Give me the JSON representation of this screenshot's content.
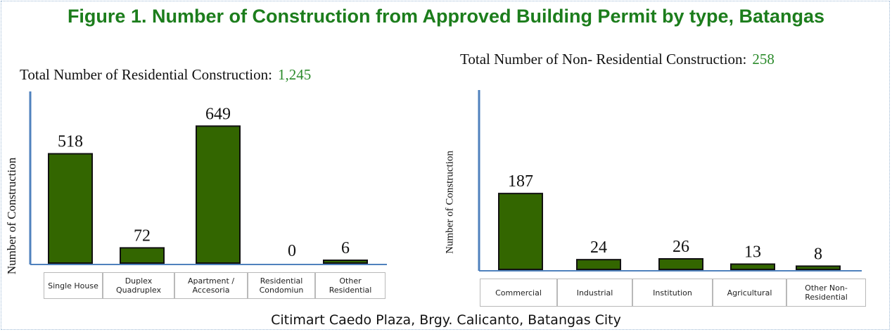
{
  "figure_title": "Figure 1. Number of Construction from Approved Building Permit by type, Batangas",
  "caption": "Citimart Caedo Plaza, Brgy. Calicanto, Batangas City",
  "colors": {
    "bar": "#336600",
    "axis": "#4f81bd",
    "title": "#1c7d1c",
    "total_value": "#2a8a2a"
  },
  "chart_data": [
    {
      "type": "bar",
      "title": "Total Number of Residential Construction:",
      "title_value": "1,245",
      "ylabel": "Number of Construction",
      "xlabel": "",
      "categories": [
        "Single House",
        "Duplex Quadruplex",
        "Apartment / Accesoria",
        "Residential Condomiun",
        "Other Residential"
      ],
      "values": [
        518,
        72,
        649,
        0,
        6
      ],
      "ylim": [
        0,
        720
      ]
    },
    {
      "type": "bar",
      "title": "Total Number of Non- Residential Construction:",
      "title_value": "258",
      "ylabel": "Number of Construction",
      "xlabel": "",
      "categories": [
        "Commercial",
        "Industrial",
        "Institution",
        "Agricultural",
        "Other Non-Residential"
      ],
      "values": [
        187,
        24,
        26,
        13,
        8
      ],
      "ylim": [
        0,
        260
      ]
    }
  ]
}
